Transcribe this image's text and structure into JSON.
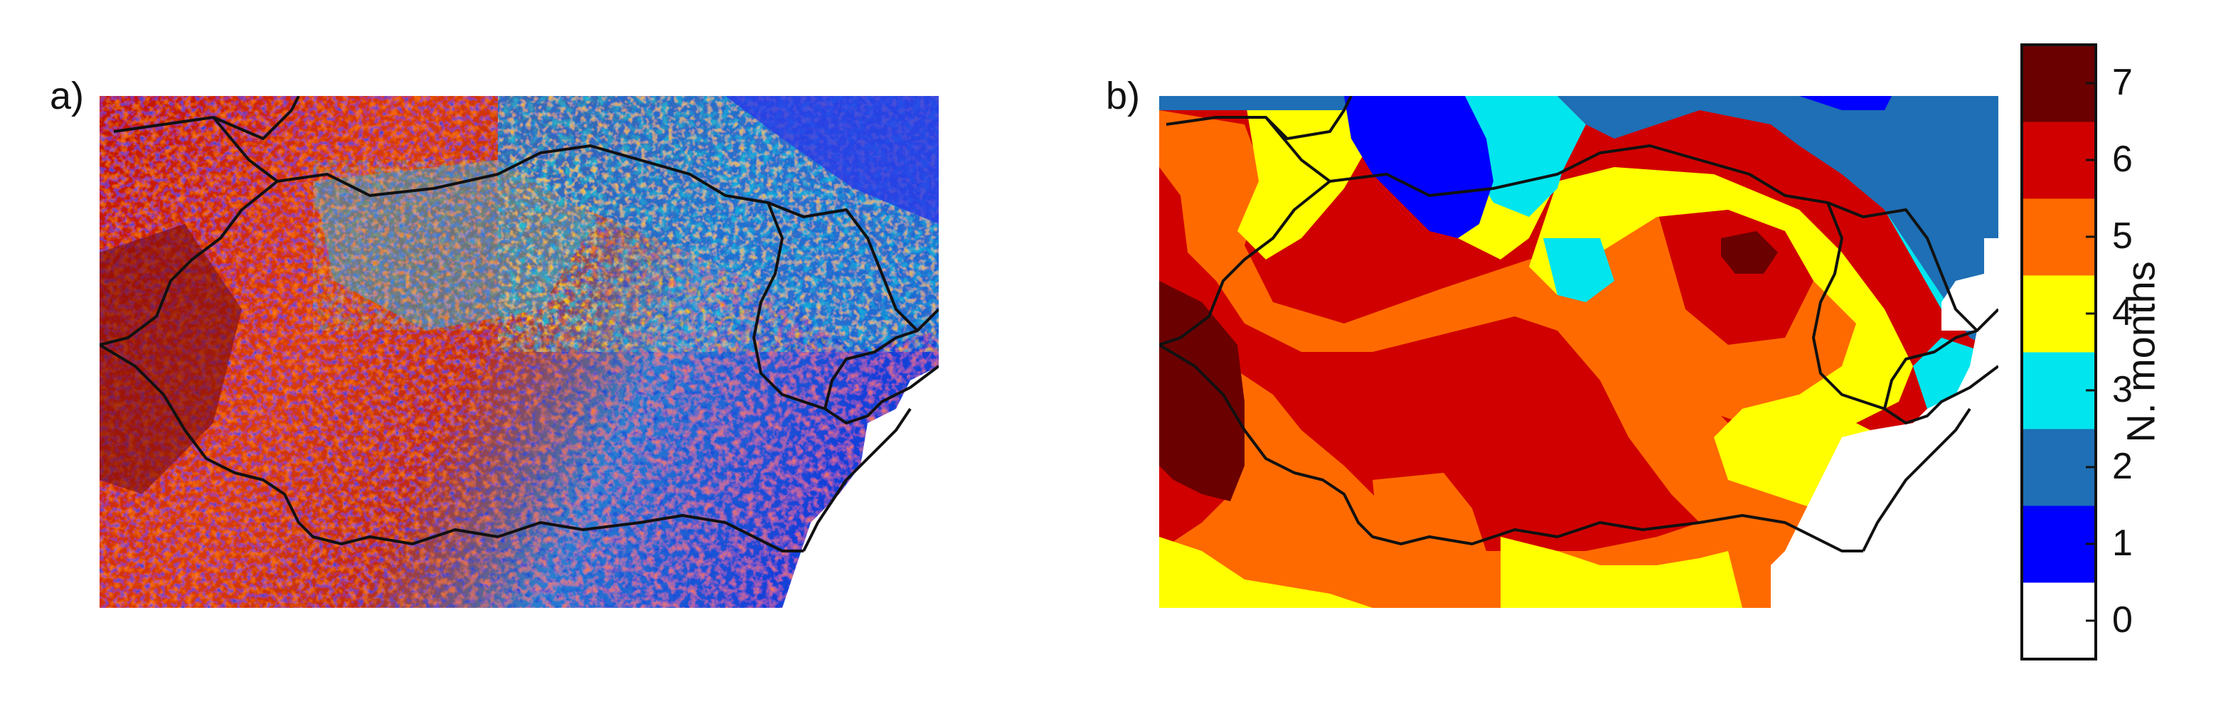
{
  "panels": {
    "a": {
      "label": "a)"
    },
    "b": {
      "label": "b)"
    }
  },
  "colorbar": {
    "title": "N. months",
    "ticks": [
      "0",
      "1",
      "2",
      "3",
      "4",
      "5",
      "6",
      "7"
    ],
    "colors": [
      "#ffffff",
      "#0000ff",
      "#1e6fb5",
      "#00e5ee",
      "#ffff00",
      "#ff6a00",
      "#d00000",
      "#6b0000"
    ]
  },
  "palette": {
    "white": "#ffffff",
    "blue": "#0000ff",
    "steel_blue": "#1e6fb5",
    "cyan": "#00e5ee",
    "yellow": "#ffff00",
    "orange": "#ff6a00",
    "red": "#d00000",
    "dark_red": "#6b0000",
    "border": "#111111"
  }
}
